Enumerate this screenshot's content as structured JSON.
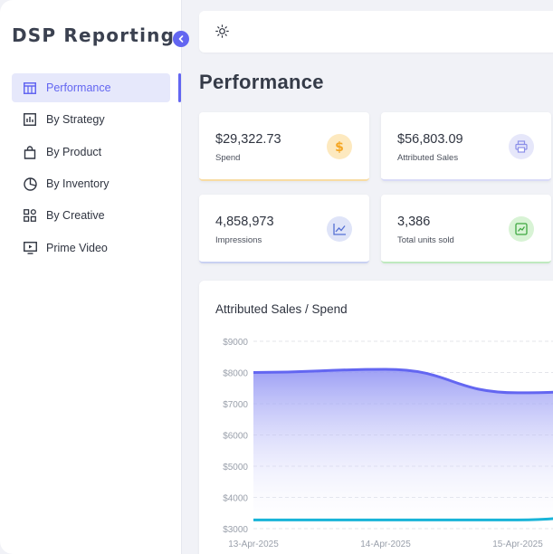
{
  "sidebar": {
    "brand": "DSP Reporting",
    "items": [
      {
        "label": "Performance",
        "icon": "table-columns-icon",
        "active": true
      },
      {
        "label": "By Strategy",
        "icon": "bar-chart-icon",
        "active": false
      },
      {
        "label": "By Product",
        "icon": "shopping-bag-icon",
        "active": false
      },
      {
        "label": "By Inventory",
        "icon": "pie-chart-icon",
        "active": false
      },
      {
        "label": "By Creative",
        "icon": "grid-icon",
        "active": false
      },
      {
        "label": "Prime Video",
        "icon": "tv-play-icon",
        "active": false
      }
    ]
  },
  "topbar": {
    "theme_icon": "sun-icon"
  },
  "page": {
    "title": "Performance"
  },
  "cards": [
    {
      "value": "$29,322.73",
      "label": "Spend",
      "icon": "dollar-icon",
      "accent": "#f5b83d"
    },
    {
      "value": "$56,803.09",
      "label": "Attributed Sales",
      "icon": "printer-icon",
      "accent": "#8b8fe8"
    },
    {
      "value": "4,858,973",
      "label": "Impressions",
      "icon": "line-chart-icon",
      "accent": "#6b7fd7"
    },
    {
      "value": "3,386",
      "label": "Total units sold",
      "icon": "chart-box-icon",
      "accent": "#5cc95f"
    }
  ],
  "colors": {
    "primary": "#6366f1",
    "secondary": "#18b4d8"
  },
  "chart_data": {
    "type": "area",
    "title": "Attributed Sales / Spend",
    "x_ticks": [
      "13-Apr-2025",
      "14-Apr-2025",
      "15-Apr-2025"
    ],
    "y_ticks": [
      "$9000",
      "$8000",
      "$7000",
      "$6000",
      "$5000",
      "$4000",
      "$3000"
    ],
    "ylim": [
      3000,
      9000
    ],
    "x": [
      "13-Apr-2025",
      "14-Apr-2025",
      "15-Apr-2025",
      "15.5-Apr-2025"
    ],
    "series": [
      {
        "values": [
          8000,
          8100,
          7350,
          7500
        ],
        "color": "#6366f1",
        "fill": true
      },
      {
        "values": [
          3280,
          3280,
          3280,
          3600
        ],
        "color": "#18b4d8",
        "fill": false
      }
    ],
    "grid": true
  }
}
